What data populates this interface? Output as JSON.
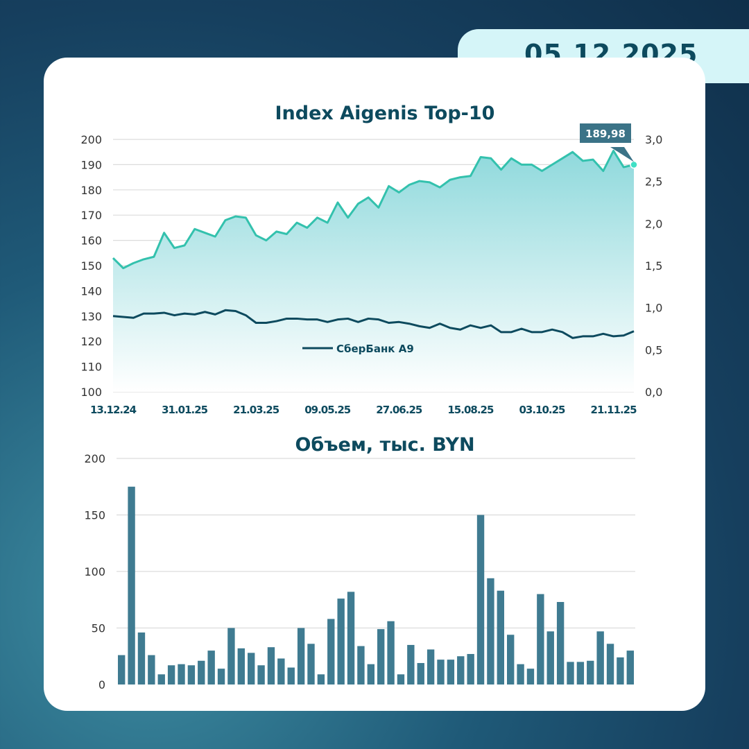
{
  "date": "05.12.2025",
  "colors": {
    "index": "#33c1ad",
    "sber": "#0d4a5e",
    "bars": "#3f7b91",
    "title": "#0d4a5e"
  },
  "chart_data": [
    {
      "type": "area",
      "title": "Index Aigenis Top-10",
      "x_ticks": [
        "13.12.24",
        "31.01.25",
        "21.03.25",
        "09.05.25",
        "27.06.25",
        "15.08.25",
        "03.10.25",
        "21.11.25"
      ],
      "y_left": {
        "range": [
          100,
          200
        ],
        "ticks": [
          "100",
          "110",
          "120",
          "130",
          "140",
          "150",
          "160",
          "170",
          "180",
          "190",
          "200"
        ]
      },
      "y_right": {
        "range": [
          0,
          3
        ],
        "ticks": [
          "0,0",
          "0,5",
          "1,0",
          "1,5",
          "2,0",
          "2,5",
          "3,0"
        ]
      },
      "grid": true,
      "last_label": "189,98",
      "series": [
        {
          "axis": "left",
          "values": [
            153,
            149,
            151,
            152.5,
            153.5,
            163,
            157,
            158,
            164.5,
            163,
            161.5,
            168,
            169.5,
            169,
            162,
            160,
            163.5,
            162.5,
            167,
            165,
            169,
            167,
            175,
            169,
            174.5,
            177,
            173,
            181.5,
            179,
            182,
            183.5,
            183,
            181,
            184,
            185,
            185.5,
            193,
            192.5,
            188,
            192.5,
            190,
            190,
            187.5,
            190,
            192.5,
            195,
            191.5,
            192,
            187.5,
            195.5,
            189,
            189.98
          ]
        },
        {
          "name": "СберБанк А9",
          "axis": "right",
          "values": [
            0.9,
            0.89,
            0.88,
            0.93,
            0.93,
            0.94,
            0.91,
            0.93,
            0.92,
            0.95,
            0.92,
            0.97,
            0.96,
            0.91,
            0.82,
            0.82,
            0.84,
            0.87,
            0.87,
            0.86,
            0.86,
            0.83,
            0.86,
            0.87,
            0.83,
            0.87,
            0.86,
            0.82,
            0.83,
            0.81,
            0.78,
            0.76,
            0.81,
            0.76,
            0.74,
            0.79,
            0.76,
            0.79,
            0.71,
            0.71,
            0.75,
            0.71,
            0.71,
            0.74,
            0.71,
            0.64,
            0.66,
            0.66,
            0.69,
            0.66,
            0.67,
            0.72
          ]
        }
      ]
    },
    {
      "type": "bar",
      "title": "Объем, тыс. BYN",
      "y": {
        "range": [
          0,
          200
        ],
        "ticks": [
          "0",
          "50",
          "100",
          "150",
          "200"
        ]
      },
      "grid": true,
      "values": [
        26,
        175,
        46,
        26,
        9,
        17,
        18,
        17,
        21,
        30,
        14,
        50,
        32,
        28,
        17,
        33,
        23,
        15,
        50,
        36,
        9,
        58,
        76,
        82,
        34,
        18,
        49,
        56,
        9,
        35,
        19,
        31,
        22,
        22,
        25,
        27,
        150,
        94,
        83,
        44,
        18,
        14,
        80,
        47,
        73,
        20,
        20,
        21,
        47,
        36,
        24,
        30
      ]
    }
  ]
}
